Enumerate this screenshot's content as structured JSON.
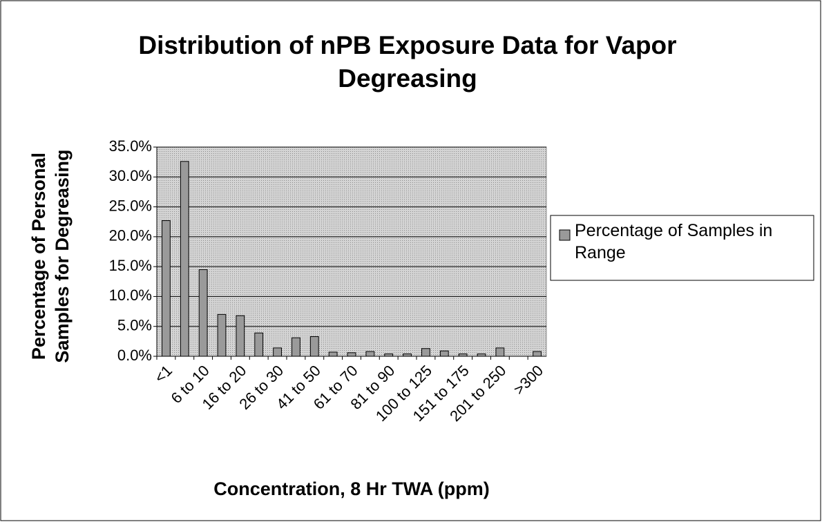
{
  "chart_data": {
    "type": "bar",
    "title": "Distribution of nPB Exposure Data for Vapor Degreasing",
    "y_label": "Percentage of Personal Samples for Degreasing",
    "x_label": "Concentration, 8 Hr TWA (ppm)",
    "categories": [
      "<1",
      null,
      "6 to 10",
      null,
      "16 to 20",
      null,
      "26 to 30",
      null,
      "41 to 50",
      null,
      "61 to 70",
      null,
      "81 to 90",
      null,
      "100 to 125",
      null,
      "151 to 175",
      null,
      "201 to 250",
      null,
      ">300"
    ],
    "series": [
      {
        "name": "Percentage of Samples in Range",
        "color": "#9a9a9a",
        "values": [
          22.7,
          32.6,
          14.5,
          7.0,
          6.8,
          3.9,
          1.4,
          3.1,
          3.3,
          0.7,
          0.6,
          0.8,
          0.4,
          0.4,
          1.3,
          0.9,
          0.4,
          0.4,
          1.4,
          0,
          0.8
        ]
      }
    ],
    "ylim": [
      0,
      35
    ],
    "yticks": [
      {
        "value": 0,
        "label": "0.0%"
      },
      {
        "value": 5,
        "label": "5.0%"
      },
      {
        "value": 10,
        "label": "10.0%"
      },
      {
        "value": 15,
        "label": "15.0%"
      },
      {
        "value": 20,
        "label": "20.0%"
      },
      {
        "value": 25,
        "label": "25.0%"
      },
      {
        "value": 30,
        "label": "30.0%"
      },
      {
        "value": 35,
        "label": "35.0%"
      }
    ],
    "grid": true,
    "legend": "right"
  }
}
